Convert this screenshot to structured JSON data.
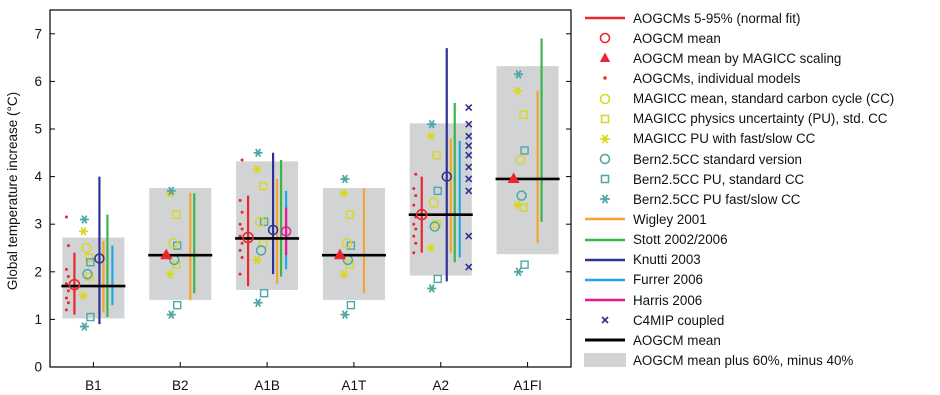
{
  "chart_data": {
    "type": "scatter",
    "ylabel": "Global temperature increase (°C)",
    "ylim": [
      0,
      7.5
    ],
    "yticks": [
      0,
      1,
      2,
      3,
      4,
      5,
      6,
      7
    ],
    "categories": [
      "B1",
      "B2",
      "A1B",
      "A1T",
      "A2",
      "A1FI"
    ],
    "aogcm_mean": [
      1.7,
      2.35,
      2.7,
      2.35,
      3.2,
      3.95
    ],
    "aogcm_mean_range": [
      [
        1.02,
        2.72
      ],
      [
        1.41,
        3.76
      ],
      [
        1.62,
        4.32
      ],
      [
        1.41,
        3.76
      ],
      [
        1.92,
        5.12
      ],
      [
        2.37,
        6.32
      ]
    ],
    "aogcm_5_95": [
      [
        1.1,
        2.4
      ],
      null,
      [
        1.7,
        3.6
      ],
      null,
      [
        2.4,
        4.0
      ],
      null
    ],
    "aogcm_mean_marker": [
      1.73,
      null,
      2.72,
      null,
      3.2,
      null
    ],
    "aogcm_mean_by_magicc_scaling": [
      null,
      2.35,
      null,
      2.35,
      null,
      3.95
    ],
    "aogcm_individual_models": [
      [
        1.2,
        1.35,
        1.45,
        1.6,
        1.75,
        1.9,
        2.05,
        2.55,
        3.15
      ],
      [],
      [
        1.95,
        2.3,
        2.45,
        2.6,
        2.75,
        2.9,
        3.0,
        3.25,
        3.5,
        4.35
      ],
      [],
      [
        2.4,
        2.6,
        2.75,
        2.9,
        3.0,
        3.15,
        3.4,
        3.6,
        3.75,
        4.05
      ],
      []
    ],
    "magicc_mean_standard_cc": [
      2.5,
      2.6,
      3.05,
      2.6,
      3.45,
      4.35
    ],
    "magicc_pu_standard_cc": [
      [
        1.9,
        2.3
      ],
      [
        2.15,
        3.2
      ],
      [
        2.6,
        3.8
      ],
      [
        2.15,
        3.2
      ],
      [
        3.0,
        4.45
      ],
      [
        3.35,
        5.3
      ]
    ],
    "magicc_pu_fast_slow_cc": [
      [
        1.5,
        2.85
      ],
      [
        1.95,
        3.65
      ],
      [
        2.25,
        4.15
      ],
      [
        1.95,
        3.65
      ],
      [
        2.5,
        4.85
      ],
      [
        3.4,
        5.8
      ]
    ],
    "bern25cc_standard_version": [
      1.95,
      2.25,
      2.45,
      2.25,
      2.95,
      3.6
    ],
    "bern25cc_pu_standard_cc": [
      [
        1.05,
        2.2
      ],
      [
        1.3,
        2.55
      ],
      [
        1.55,
        3.05
      ],
      [
        1.3,
        2.55
      ],
      [
        1.85,
        3.7
      ],
      [
        2.15,
        4.55
      ]
    ],
    "bern25cc_pu_fast_slow_cc": [
      [
        0.85,
        3.1
      ],
      [
        1.1,
        3.7
      ],
      [
        1.35,
        4.5
      ],
      [
        1.1,
        3.95
      ],
      [
        1.65,
        5.1
      ],
      [
        2.0,
        6.15
      ]
    ],
    "wigley_2001": [
      [
        1.15,
        2.65
      ],
      [
        1.4,
        3.65
      ],
      [
        1.75,
        3.95
      ],
      [
        1.55,
        3.75
      ],
      [
        2.4,
        4.8
      ],
      [
        2.6,
        5.8
      ]
    ],
    "stott_2002_2006": [
      [
        1.05,
        3.2
      ],
      [
        1.55,
        3.65
      ],
      [
        1.9,
        4.35
      ],
      null,
      [
        2.2,
        5.55
      ],
      [
        3.05,
        6.9
      ]
    ],
    "knutti_2003": [
      [
        0.9,
        4.0
      ],
      null,
      [
        1.95,
        4.5
      ],
      null,
      [
        1.8,
        6.7
      ],
      null
    ],
    "furrer_2006": [
      [
        1.3,
        2.55
      ],
      null,
      [
        2.05,
        3.7
      ],
      null,
      [
        2.3,
        4.75
      ],
      null
    ],
    "harris_2006": [
      null,
      null,
      [
        2.35,
        3.35
      ],
      null,
      null,
      null
    ],
    "c4mip_coupled": [
      [],
      [],
      [],
      [],
      [
        2.1,
        2.75,
        3.7,
        3.95,
        4.2,
        4.45,
        4.65,
        4.85,
        5.1,
        5.45
      ],
      []
    ],
    "legend": [
      {
        "key": "aogcm_5_95",
        "label": "AOGCMs 5-95% (normal fit)",
        "color": "#e8282c",
        "symbol": "line"
      },
      {
        "key": "aogcm_mean_marker",
        "label": "AOGCM mean",
        "color": "#e8282c",
        "symbol": "circle"
      },
      {
        "key": "aogcm_mean_by_magicc_scaling",
        "label": "AOGCM mean by MAGICC scaling",
        "color": "#e8282c",
        "symbol": "triangle"
      },
      {
        "key": "aogcm_individual_models",
        "label": "AOGCMs, individual models",
        "color": "#e8282c",
        "symbol": "dot"
      },
      {
        "key": "magicc_mean_standard_cc",
        "label": "MAGICC mean, standard carbon cycle (CC)",
        "color": "#d8d820",
        "symbol": "circle"
      },
      {
        "key": "magicc_pu_standard_cc",
        "label": "MAGICC physics uncertainty (PU), std. CC",
        "color": "#d8d820",
        "symbol": "square"
      },
      {
        "key": "magicc_pu_fast_slow_cc",
        "label": "MAGICC PU with fast/slow CC",
        "color": "#d8d820",
        "symbol": "star"
      },
      {
        "key": "bern25cc_standard_version",
        "label": "Bern2.5CC standard version",
        "color": "#4ea7a7",
        "symbol": "circle"
      },
      {
        "key": "bern25cc_pu_standard_cc",
        "label": "Bern2.5CC PU, standard CC",
        "color": "#4ea7a7",
        "symbol": "square"
      },
      {
        "key": "bern25cc_pu_fast_slow_cc",
        "label": "Bern2.5CC PU fast/slow CC",
        "color": "#4ea7a7",
        "symbol": "star"
      },
      {
        "key": "wigley_2001",
        "label": "Wigley 2001",
        "color": "#f2a530",
        "symbol": "line"
      },
      {
        "key": "stott_2002_2006",
        "label": "Stott 2002/2006",
        "color": "#3ab54a",
        "symbol": "line"
      },
      {
        "key": "knutti_2003",
        "label": "Knutti 2003",
        "color": "#2e3192",
        "symbol": "line"
      },
      {
        "key": "furrer_2006",
        "label": "Furrer 2006",
        "color": "#1fa8e8",
        "symbol": "line"
      },
      {
        "key": "harris_2006",
        "label": "Harris 2006",
        "color": "#e8198b",
        "symbol": "line"
      },
      {
        "key": "c4mip_coupled",
        "label": "C4MIP coupled",
        "color": "#2e3192",
        "symbol": "x"
      },
      {
        "key": "aogcm_mean",
        "label": "AOGCM mean",
        "color": "#000000",
        "symbol": "thickline"
      },
      {
        "key": "aogcm_mean_range",
        "label": "AOGCM mean plus 60%, minus 40%",
        "color": "#d2d3d5",
        "symbol": "box"
      }
    ]
  }
}
